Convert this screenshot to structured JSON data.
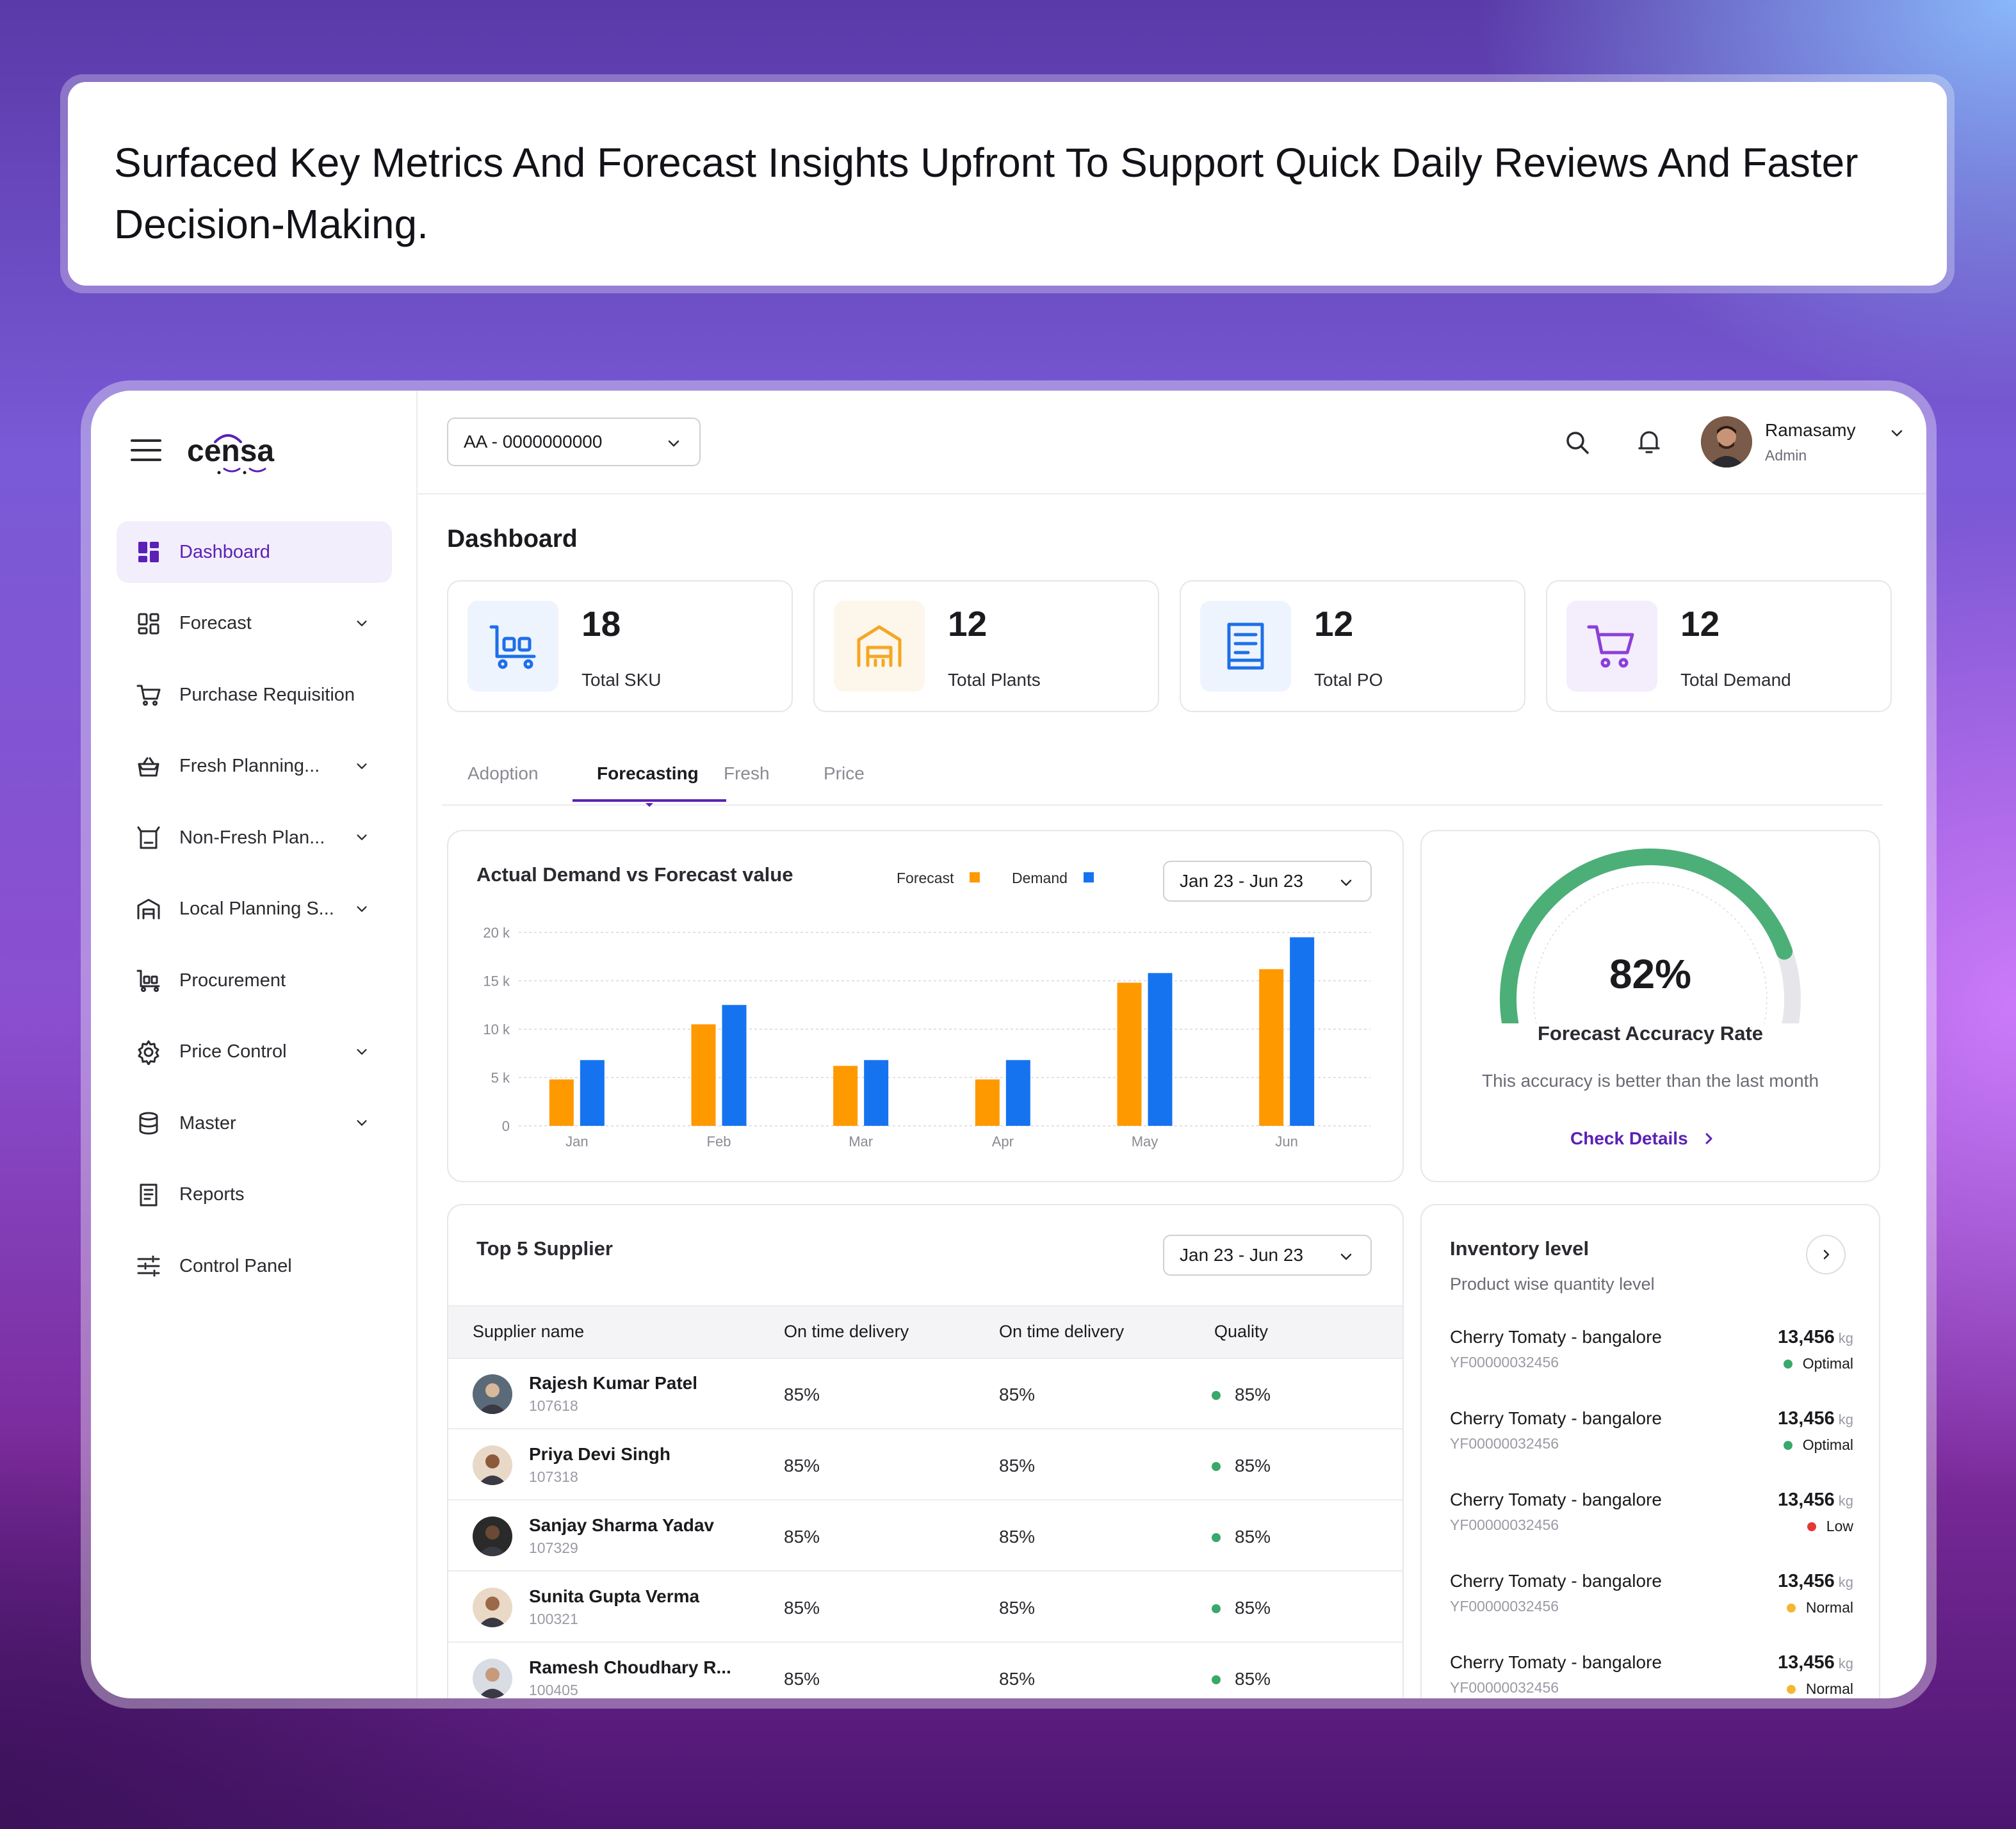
{
  "banner": {
    "text": "Surfaced Key Metrics And Forecast Insights Upfront To Support Quick Daily Reviews And Faster Decision-Making."
  },
  "app": {
    "logo_text": "censa",
    "brand_color": "#5b21b6"
  },
  "sidebar": {
    "items": [
      {
        "label": "Dashboard",
        "icon": "dashboard-grid-icon",
        "active": true,
        "expandable": false
      },
      {
        "label": "Forecast",
        "icon": "layout-grid-icon",
        "active": false,
        "expandable": true
      },
      {
        "label": "Purchase Requisition",
        "icon": "cart-icon",
        "active": false,
        "expandable": false
      },
      {
        "label": "Fresh Planning...",
        "icon": "basket-icon",
        "active": false,
        "expandable": true
      },
      {
        "label": "Non-Fresh Plan...",
        "icon": "box-icon",
        "active": false,
        "expandable": true
      },
      {
        "label": "Local Planning S...",
        "icon": "store-icon",
        "active": false,
        "expandable": true
      },
      {
        "label": "Procurement",
        "icon": "trolley-icon",
        "active": false,
        "expandable": false
      },
      {
        "label": "Price Control",
        "icon": "gear-icon",
        "active": false,
        "expandable": true
      },
      {
        "label": "Master",
        "icon": "database-icon",
        "active": false,
        "expandable": true
      },
      {
        "label": "Reports",
        "icon": "report-icon",
        "active": false,
        "expandable": false
      },
      {
        "label": "Control Panel",
        "icon": "sliders-icon",
        "active": false,
        "expandable": false
      }
    ]
  },
  "topbar": {
    "account_select": "AA - 0000000000",
    "user": {
      "name": "Ramasamy",
      "role": "Admin"
    }
  },
  "dashboard": {
    "title": "Dashboard",
    "stats": [
      {
        "value": "18",
        "label": "Total SKU",
        "icon": "trolley-icon",
        "color": "#1e6fe8",
        "bg": "#eef4fd"
      },
      {
        "value": "12",
        "label": "Total Plants",
        "icon": "warehouse-icon",
        "color": "#f5a623",
        "bg": "#fdf6ea"
      },
      {
        "value": "12",
        "label": "Total PO",
        "icon": "document-icon",
        "color": "#1e6fe8",
        "bg": "#eef4fd"
      },
      {
        "value": "12",
        "label": "Total Demand",
        "icon": "cart-icon",
        "color": "#8b3fd9",
        "bg": "#f4edfc"
      }
    ],
    "tabs": [
      "Adoption",
      "Forecasting",
      "Fresh",
      "Price"
    ],
    "active_tab": "Forecasting"
  },
  "chart_card": {
    "title": "Actual Demand vs Forecast value",
    "date_range": "Jan 23 - Jun 23"
  },
  "chart_data": {
    "type": "bar",
    "title": "Actual Demand vs Forecast value",
    "categories": [
      "Jan",
      "Feb",
      "Mar",
      "Apr",
      "May",
      "Jun"
    ],
    "series": [
      {
        "name": "Forecast",
        "color": "#ff9900",
        "values": [
          4800,
          10500,
          6200,
          4800,
          14800,
          16200
        ]
      },
      {
        "name": "Demand",
        "color": "#1573f0",
        "values": [
          6800,
          12500,
          6800,
          6800,
          15800,
          19500
        ]
      }
    ],
    "y_ticks": [
      "20 k",
      "15 k",
      "10 k",
      "5 k",
      "0"
    ],
    "ylim": [
      0,
      20000
    ],
    "grid": true,
    "legend_position": "top-right",
    "xlabel": "",
    "ylabel": ""
  },
  "gauge": {
    "value_text": "82%",
    "value": 0.82,
    "title": "Forecast Accuracy Rate",
    "subtitle": "This accuracy is better than the last month",
    "link": "Check Details",
    "fill_color": "#4caf78",
    "track_color": "#e6e6ea"
  },
  "suppliers": {
    "title": "Top 5 Supplier",
    "date_range": "Jan 23 - Jun 23",
    "columns": [
      "Supplier name",
      "On time delivery",
      "On time delivery",
      "Quality"
    ],
    "rows": [
      {
        "name": "Rajesh Kumar Patel",
        "id": "107618",
        "delivery1": "85%",
        "delivery2": "85%",
        "quality": "85%"
      },
      {
        "name": "Priya Devi Singh",
        "id": "107318",
        "delivery1": "85%",
        "delivery2": "85%",
        "quality": "85%"
      },
      {
        "name": "Sanjay Sharma Yadav",
        "id": "107329",
        "delivery1": "85%",
        "delivery2": "85%",
        "quality": "85%"
      },
      {
        "name": "Sunita Gupta Verma",
        "id": "100321",
        "delivery1": "85%",
        "delivery2": "85%",
        "quality": "85%"
      },
      {
        "name": "Ramesh Choudhary R...",
        "id": "100405",
        "delivery1": "85%",
        "delivery2": "85%",
        "quality": "85%"
      }
    ]
  },
  "inventory": {
    "title": "Inventory level",
    "subtitle": "Product wise quantity level",
    "items": [
      {
        "product": "Cherry Tomaty - bangalore",
        "code": "YF00000032456",
        "qty": "13,456",
        "unit": "kg",
        "status": "Optimal",
        "status_color": "#3aa86b"
      },
      {
        "product": "Cherry Tomaty - bangalore",
        "code": "YF00000032456",
        "qty": "13,456",
        "unit": "kg",
        "status": "Optimal",
        "status_color": "#3aa86b"
      },
      {
        "product": "Cherry Tomaty - bangalore",
        "code": "YF00000032456",
        "qty": "13,456",
        "unit": "kg",
        "status": "Low",
        "status_color": "#e53935"
      },
      {
        "product": "Cherry Tomaty - bangalore",
        "code": "YF00000032456",
        "qty": "13,456",
        "unit": "kg",
        "status": "Normal",
        "status_color": "#f5b731"
      },
      {
        "product": "Cherry Tomaty - bangalore",
        "code": "YF00000032456",
        "qty": "13,456",
        "unit": "kg",
        "status": "Normal",
        "status_color": "#f5b731"
      }
    ]
  }
}
